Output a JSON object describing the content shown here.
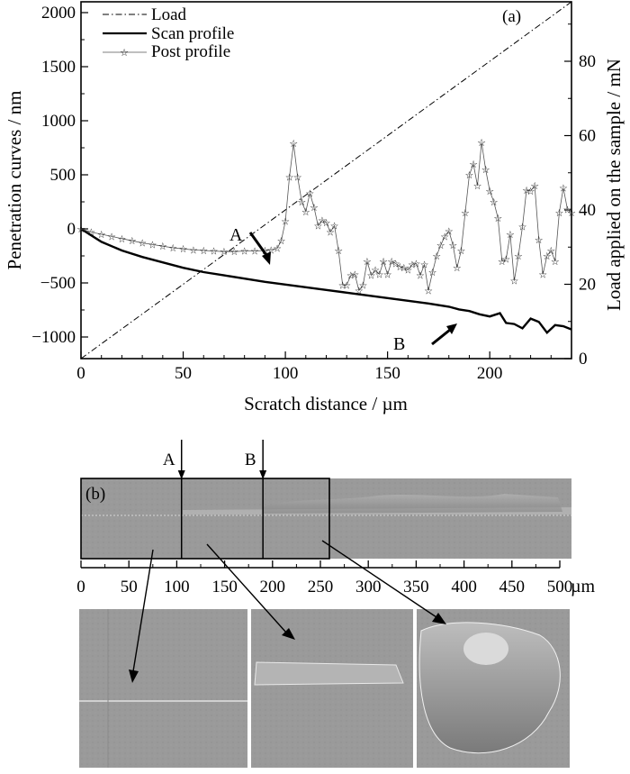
{
  "chart_data": {
    "type": "line",
    "panel_label": "(a)",
    "xlabel": "Scratch distance / µm",
    "ylabel_left": "Penetration curves / nm",
    "ylabel_right": "Load applied on the sample / mN",
    "xlim": [
      0,
      240
    ],
    "ylim_left": [
      -1200,
      2100
    ],
    "ylim_right": [
      0,
      96
    ],
    "xticks": [
      "0",
      "50",
      "100",
      "150",
      "200"
    ],
    "yticks_left": [
      "2000",
      "1500",
      "1000",
      "500",
      "0",
      "−500",
      "−1000"
    ],
    "yticks_right": [
      "80",
      "60",
      "40",
      "20",
      "0"
    ],
    "legend_position": "top-left",
    "grid": false,
    "series": [
      {
        "name": "Load",
        "axis": "right",
        "style": "dash-dot",
        "x": [
          0,
          240
        ],
        "y": [
          0,
          96
        ]
      },
      {
        "name": "Scan profile",
        "axis": "left",
        "style": "solid-thick",
        "x": [
          0,
          10,
          20,
          30,
          40,
          50,
          60,
          70,
          80,
          90,
          100,
          110,
          120,
          130,
          140,
          150,
          160,
          170,
          180,
          185,
          190,
          195,
          200,
          205,
          208,
          212,
          216,
          220,
          224,
          228,
          232,
          236,
          240
        ],
        "y": [
          0,
          -120,
          -200,
          -260,
          -310,
          -360,
          -400,
          -430,
          -460,
          -490,
          -515,
          -540,
          -565,
          -590,
          -615,
          -640,
          -665,
          -690,
          -720,
          -745,
          -760,
          -790,
          -810,
          -780,
          -870,
          -880,
          -920,
          -830,
          -860,
          -960,
          -890,
          -900,
          -930
        ]
      },
      {
        "name": "Post profile",
        "axis": "left",
        "style": "thin-star-markers",
        "x": [
          0,
          5,
          10,
          15,
          20,
          25,
          30,
          35,
          40,
          45,
          50,
          55,
          60,
          65,
          70,
          75,
          80,
          85,
          90,
          93,
          96,
          98,
          100,
          102,
          104,
          106,
          108,
          110,
          112,
          114,
          116,
          118,
          120,
          122,
          124,
          126,
          128,
          130,
          132,
          134,
          136,
          138,
          140,
          142,
          144,
          146,
          148,
          150,
          152,
          154,
          156,
          158,
          160,
          162,
          164,
          166,
          168,
          170,
          172,
          174,
          176,
          178,
          180,
          182,
          184,
          186,
          188,
          190,
          192,
          194,
          196,
          198,
          200,
          202,
          204,
          206,
          208,
          210,
          212,
          214,
          216,
          218,
          220,
          222,
          224,
          226,
          228,
          230,
          232,
          234,
          236,
          238,
          240
        ],
        "y": [
          0,
          -30,
          -50,
          -70,
          -90,
          -110,
          -130,
          -145,
          -160,
          -175,
          -185,
          -195,
          -200,
          -205,
          -210,
          -210,
          -205,
          -205,
          -200,
          -195,
          -180,
          -110,
          70,
          480,
          790,
          480,
          250,
          160,
          330,
          200,
          30,
          80,
          60,
          -30,
          30,
          -200,
          -520,
          -520,
          -430,
          -420,
          -570,
          -520,
          -300,
          -430,
          -380,
          -420,
          -300,
          -420,
          -300,
          -320,
          -350,
          -360,
          -380,
          -330,
          -320,
          -430,
          -330,
          -570,
          -400,
          -250,
          -150,
          -70,
          -20,
          -150,
          -360,
          -200,
          150,
          500,
          600,
          400,
          800,
          550,
          350,
          250,
          100,
          -300,
          -280,
          -50,
          -480,
          -250,
          20,
          360,
          350,
          400,
          -100,
          -420,
          -250,
          -200,
          -300,
          150,
          380,
          180,
          150
        ]
      }
    ],
    "annotations": [
      {
        "label": "A",
        "x": 92,
        "y": -160
      },
      {
        "label": "B",
        "x": 185,
        "y": -735
      }
    ]
  },
  "panel_b": {
    "label": "(b)",
    "marker_a": "A",
    "marker_b": "B",
    "marker_a_value": 105,
    "marker_b_value": 190,
    "scale_ticks": [
      "0",
      "50",
      "100",
      "150",
      "200",
      "250",
      "300",
      "350",
      "400",
      "450",
      "500"
    ],
    "scale_unit": "µm",
    "scale_range": [
      0,
      500
    ],
    "inset_box_range": [
      0,
      260
    ]
  }
}
